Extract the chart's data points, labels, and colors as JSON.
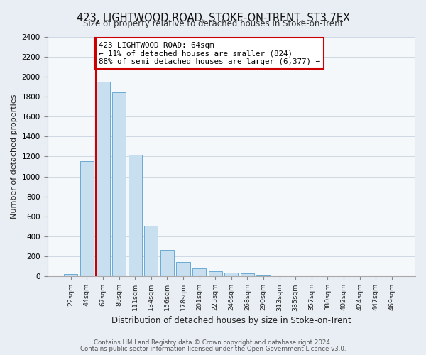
{
  "title": "423, LIGHTWOOD ROAD, STOKE-ON-TRENT, ST3 7EX",
  "subtitle": "Size of property relative to detached houses in Stoke-on-Trent",
  "xlabel": "Distribution of detached houses by size in Stoke-on-Trent",
  "ylabel": "Number of detached properties",
  "bar_labels": [
    "22sqm",
    "44sqm",
    "67sqm",
    "89sqm",
    "111sqm",
    "134sqm",
    "156sqm",
    "178sqm",
    "201sqm",
    "223sqm",
    "246sqm",
    "268sqm",
    "290sqm",
    "313sqm",
    "335sqm",
    "357sqm",
    "380sqm",
    "402sqm",
    "424sqm",
    "447sqm",
    "469sqm"
  ],
  "bar_values": [
    25,
    1150,
    1950,
    1840,
    1220,
    510,
    265,
    148,
    80,
    50,
    38,
    30,
    10,
    5,
    3,
    2,
    1,
    1,
    0,
    0,
    0
  ],
  "bar_color": "#c8dff0",
  "bar_edge_color": "#6aaad4",
  "property_line_color": "#cc0000",
  "property_line_index": 2,
  "annotation_line1": "423 LIGHTWOOD ROAD: 64sqm",
  "annotation_line2": "← 11% of detached houses are smaller (824)",
  "annotation_line3": "88% of semi-detached houses are larger (6,377) →",
  "annotation_box_color": "#ffffff",
  "annotation_box_edge_color": "#cc0000",
  "ylim": [
    0,
    2400
  ],
  "yticks": [
    0,
    200,
    400,
    600,
    800,
    1000,
    1200,
    1400,
    1600,
    1800,
    2000,
    2200,
    2400
  ],
  "footnote1": "Contains HM Land Registry data © Crown copyright and database right 2024.",
  "footnote2": "Contains public sector information licensed under the Open Government Licence v3.0.",
  "background_color": "#e8eef4",
  "plot_bg_color": "#f4f8fb"
}
